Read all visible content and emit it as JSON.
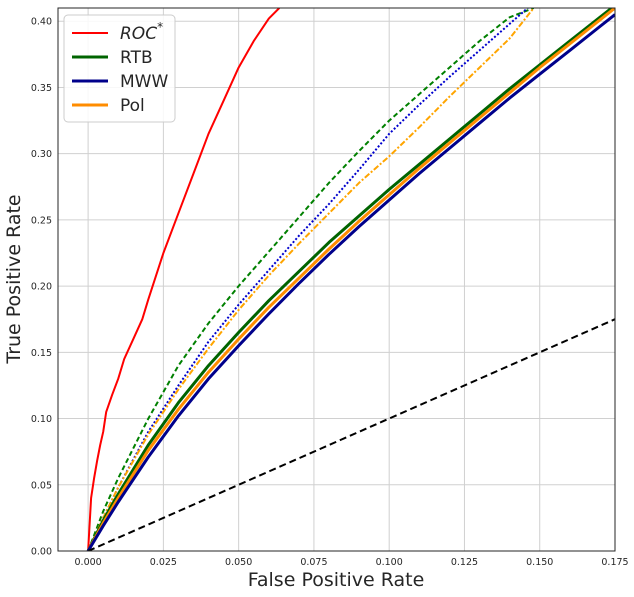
{
  "chart_data": {
    "type": "line",
    "title": "",
    "xlabel": "False Positive Rate",
    "ylabel": "True Positive Rate",
    "xlim": [
      -0.01,
      0.175
    ],
    "ylim": [
      0.0,
      0.41
    ],
    "grid": true,
    "legend_position": "top-left",
    "xticks": [
      0.0,
      0.025,
      0.05,
      0.075,
      0.1,
      0.125,
      0.15,
      0.175
    ],
    "xtick_labels": [
      "0.000",
      "0.025",
      "0.050",
      "0.075",
      "0.100",
      "0.125",
      "0.150",
      "0.175"
    ],
    "yticks": [
      0.0,
      0.05,
      0.1,
      0.15,
      0.2,
      0.25,
      0.3,
      0.35,
      0.4
    ],
    "ytick_labels": [
      "0.00",
      "0.05",
      "0.10",
      "0.15",
      "0.20",
      "0.25",
      "0.30",
      "0.35",
      "0.40"
    ],
    "legend": [
      {
        "label": "ROC",
        "superscript": "*",
        "italic": true,
        "color": "#ff0000",
        "width": 2
      },
      {
        "label": "RTB",
        "superscript": "",
        "italic": false,
        "color": "#006400",
        "width": 3
      },
      {
        "label": "MWW",
        "superscript": "",
        "italic": false,
        "color": "#00008b",
        "width": 3
      },
      {
        "label": "Pol",
        "superscript": "",
        "italic": false,
        "color": "#ff8c00",
        "width": 3
      }
    ],
    "series": [
      {
        "name": "ROC*",
        "color": "#ff0000",
        "width": 2,
        "dash": "",
        "x": [
          0,
          0.0005,
          0.001,
          0.002,
          0.003,
          0.004,
          0.005,
          0.006,
          0.008,
          0.01,
          0.012,
          0.015,
          0.018,
          0.02,
          0.025,
          0.03,
          0.035,
          0.04,
          0.045,
          0.05,
          0.055,
          0.06,
          0.0635
        ],
        "y": [
          0,
          0.02,
          0.04,
          0.055,
          0.068,
          0.08,
          0.09,
          0.105,
          0.118,
          0.13,
          0.145,
          0.16,
          0.175,
          0.19,
          0.225,
          0.255,
          0.285,
          0.315,
          0.34,
          0.365,
          0.385,
          0.402,
          0.41
        ]
      },
      {
        "name": "RTB dashed",
        "color": "#008000",
        "width": 2,
        "dash": "5,3",
        "x": [
          0,
          0.005,
          0.01,
          0.02,
          0.03,
          0.04,
          0.05,
          0.06,
          0.07,
          0.08,
          0.09,
          0.1,
          0.11,
          0.12,
          0.13,
          0.14,
          0.148
        ],
        "y": [
          0,
          0.03,
          0.055,
          0.1,
          0.14,
          0.172,
          0.2,
          0.226,
          0.252,
          0.278,
          0.302,
          0.325,
          0.345,
          0.365,
          0.385,
          0.403,
          0.41
        ]
      },
      {
        "name": "MWW dotted",
        "color": "#0000cd",
        "width": 2,
        "dash": "2,2",
        "x": [
          0,
          0.005,
          0.01,
          0.02,
          0.03,
          0.04,
          0.05,
          0.06,
          0.07,
          0.08,
          0.09,
          0.1,
          0.11,
          0.12,
          0.13,
          0.14,
          0.146
        ],
        "y": [
          0,
          0.025,
          0.048,
          0.09,
          0.125,
          0.158,
          0.186,
          0.212,
          0.238,
          0.262,
          0.288,
          0.315,
          0.337,
          0.358,
          0.378,
          0.398,
          0.41
        ]
      },
      {
        "name": "Pol dashdot",
        "color": "#ffa500",
        "width": 2,
        "dash": "6,2,2,2",
        "x": [
          0,
          0.005,
          0.01,
          0.02,
          0.03,
          0.04,
          0.05,
          0.06,
          0.07,
          0.08,
          0.09,
          0.1,
          0.11,
          0.12,
          0.13,
          0.14,
          0.148
        ],
        "y": [
          0,
          0.025,
          0.048,
          0.088,
          0.122,
          0.153,
          0.182,
          0.208,
          0.232,
          0.255,
          0.278,
          0.298,
          0.32,
          0.343,
          0.365,
          0.387,
          0.41
        ]
      },
      {
        "name": "RTB",
        "color": "#006400",
        "width": 3,
        "dash": "",
        "x": [
          0,
          0.005,
          0.01,
          0.02,
          0.03,
          0.04,
          0.05,
          0.06,
          0.07,
          0.08,
          0.09,
          0.1,
          0.11,
          0.12,
          0.13,
          0.14,
          0.15,
          0.16,
          0.17,
          0.175
        ],
        "y": [
          0,
          0.023,
          0.043,
          0.08,
          0.112,
          0.14,
          0.165,
          0.189,
          0.211,
          0.233,
          0.253,
          0.273,
          0.292,
          0.311,
          0.33,
          0.349,
          0.367,
          0.385,
          0.403,
          0.412
        ]
      },
      {
        "name": "Pol",
        "color": "#ff8c00",
        "width": 3,
        "dash": "",
        "x": [
          0,
          0.005,
          0.01,
          0.02,
          0.03,
          0.04,
          0.05,
          0.06,
          0.07,
          0.08,
          0.09,
          0.1,
          0.11,
          0.12,
          0.13,
          0.14,
          0.15,
          0.16,
          0.17,
          0.175
        ],
        "y": [
          0,
          0.021,
          0.04,
          0.076,
          0.107,
          0.135,
          0.16,
          0.184,
          0.206,
          0.228,
          0.249,
          0.269,
          0.289,
          0.308,
          0.327,
          0.346,
          0.365,
          0.383,
          0.401,
          0.41
        ]
      },
      {
        "name": "MWW",
        "color": "#00008b",
        "width": 3,
        "dash": "",
        "x": [
          0,
          0.005,
          0.01,
          0.02,
          0.03,
          0.04,
          0.05,
          0.06,
          0.07,
          0.08,
          0.09,
          0.1,
          0.11,
          0.12,
          0.13,
          0.14,
          0.15,
          0.16,
          0.17,
          0.175
        ],
        "y": [
          0,
          0.019,
          0.037,
          0.071,
          0.102,
          0.13,
          0.155,
          0.179,
          0.202,
          0.224,
          0.245,
          0.265,
          0.285,
          0.304,
          0.323,
          0.342,
          0.36,
          0.378,
          0.396,
          0.405
        ]
      },
      {
        "name": "chance",
        "color": "#000000",
        "width": 2,
        "dash": "7,4",
        "x": [
          0,
          0.175
        ],
        "y": [
          0,
          0.175
        ]
      }
    ]
  }
}
